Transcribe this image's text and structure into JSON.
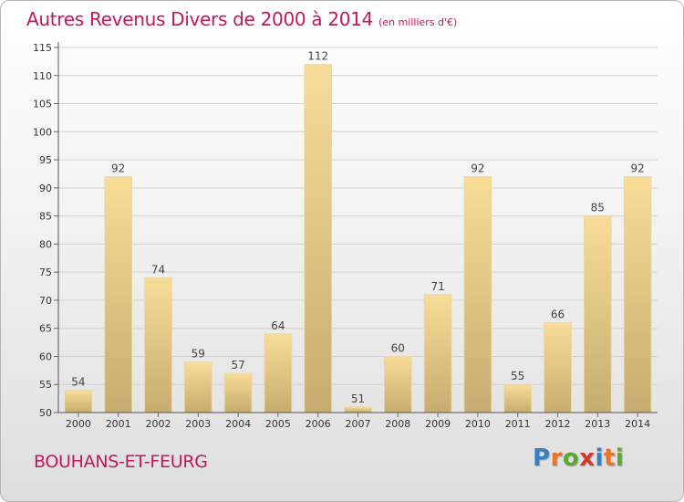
{
  "title": "Autres Revenus Divers de 2000 à 2014",
  "subtitle": "(en milliers d'€)",
  "commune": "BOUHANS-ET-FEURG",
  "logo": {
    "text": "Proxiti",
    "colors": [
      "#3a7fc1",
      "#e8742a",
      "#5aa832",
      "#d13a2e",
      "#3a7fc1",
      "#e8742a",
      "#5aa832"
    ]
  },
  "colors": {
    "title": "#c2185b",
    "bar_light": "#f8dc98",
    "bar_dark": "#c6ad6f"
  },
  "chart_data": {
    "type": "bar",
    "categories": [
      "2000",
      "2001",
      "2002",
      "2003",
      "2004",
      "2005",
      "2006",
      "2007",
      "2008",
      "2009",
      "2010",
      "2011",
      "2012",
      "2013",
      "2014"
    ],
    "values": [
      54,
      92,
      74,
      59,
      57,
      64,
      112,
      51,
      60,
      71,
      92,
      55,
      66,
      85,
      92
    ],
    "title": "Autres Revenus Divers de 2000 à 2014",
    "ylim": [
      50,
      115
    ],
    "yticks": [
      50,
      55,
      60,
      65,
      70,
      75,
      80,
      85,
      90,
      95,
      100,
      105,
      110,
      115
    ],
    "grid": true,
    "legend": false
  }
}
